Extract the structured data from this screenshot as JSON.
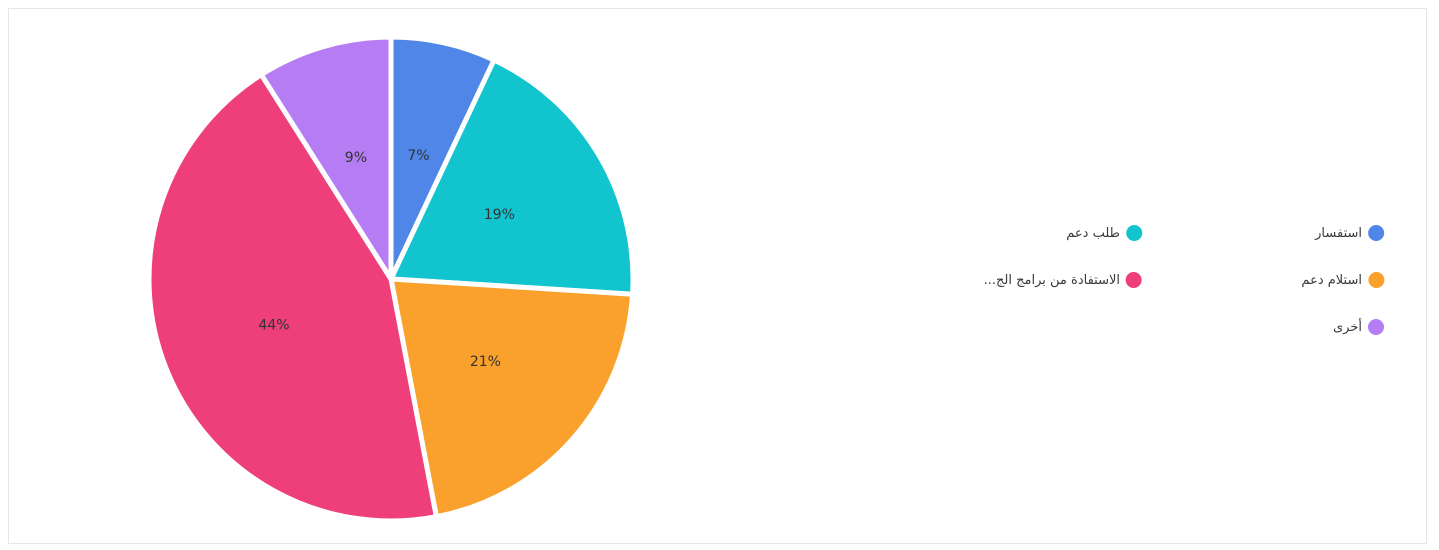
{
  "chart_data": {
    "type": "pie",
    "title": "",
    "legend_position": "right",
    "slices": [
      {
        "name": "استفسار",
        "value": 7,
        "label": "7%",
        "color": "#4f86e8"
      },
      {
        "name": "طلب دعم",
        "value": 19,
        "label": "19%",
        "color": "#12c4cd"
      },
      {
        "name": "استلام دعم",
        "value": 21,
        "label": "21%",
        "color": "#f9a12c"
      },
      {
        "name": "الاستفادة من برامج الج...",
        "value": 44,
        "label": "44%",
        "color": "#ee3f7a"
      },
      {
        "name": "أخرى",
        "value": 9,
        "label": "9%",
        "color": "#b57cf4"
      }
    ]
  }
}
